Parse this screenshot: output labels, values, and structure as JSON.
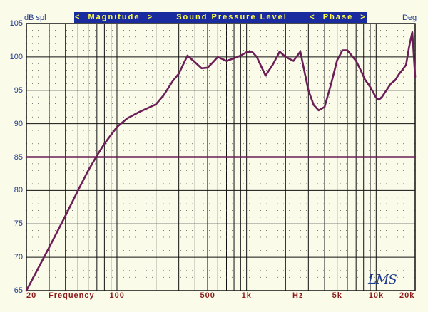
{
  "header": {
    "y_unit_left": "dB spl",
    "y_unit_right": "Deg",
    "banner_magnitude": "<  Magnitude  >",
    "banner_title": "Sound Pressure Level",
    "banner_phase": "<  Phase  >"
  },
  "logo_text": "LMS",
  "colors": {
    "curve": "#6b1f56",
    "reference": "#6b1f56",
    "grid": "#111111",
    "banner_bg": "#1a2ba0",
    "banner_text": "#ffff44",
    "y_tick_text": "#1f3a8a",
    "x_tick_text": "#8b1a1a",
    "background": "#fbfbea"
  },
  "chart_data": {
    "type": "line",
    "title": "Sound Pressure Level",
    "xlabel": "Frequency",
    "ylabel": "dB spl",
    "x_scale": "log",
    "xlim": [
      20,
      20000
    ],
    "ylim": [
      65,
      105
    ],
    "grid": true,
    "y_ticks": [
      65,
      70,
      75,
      80,
      85,
      90,
      95,
      100,
      105
    ],
    "y_tick_labels": [
      "65",
      "70",
      "75",
      "80",
      "85",
      "90",
      "95",
      "100",
      "105"
    ],
    "x_ticks": [
      {
        "x": 20,
        "label": "20"
      },
      {
        "x": 100,
        "label": "100"
      },
      {
        "x": 500,
        "label": "500"
      },
      {
        "x": 1000,
        "label": "1k"
      },
      {
        "x": 5000,
        "label": "5k"
      },
      {
        "x": 10000,
        "label": "10k"
      },
      {
        "x": 20000,
        "label": "20k"
      }
    ],
    "x_axis_words": [
      "Frequency",
      "Hz"
    ],
    "series": [
      {
        "role": "magnitude",
        "x": [
          20,
          30,
          40,
          50,
          60,
          70,
          80,
          100,
          120,
          150,
          200,
          230,
          270,
          300,
          350,
          400,
          450,
          500,
          550,
          600,
          700,
          800,
          900,
          1000,
          1100,
          1200,
          1400,
          1600,
          1800,
          2000,
          2300,
          2600,
          3000,
          3300,
          3600,
          4000,
          4500,
          5000,
          5500,
          6000,
          7000,
          7600,
          8200,
          9000,
          10000,
          10500,
          11000,
          12000,
          13000,
          14000,
          15000,
          16000,
          17000,
          18000,
          19000,
          20000
        ],
        "y": [
          65,
          71.5,
          76.2,
          80,
          83,
          85.2,
          87,
          89.5,
          90.8,
          91.8,
          92.9,
          94.3,
          96.4,
          97.5,
          100.2,
          99.2,
          98.3,
          98.4,
          99.2,
          100.0,
          99.4,
          99.8,
          100.2,
          100.7,
          100.8,
          100.0,
          97.2,
          98.9,
          100.8,
          100.0,
          99.4,
          100.8,
          95.0,
          92.8,
          92.0,
          92.5,
          96.0,
          99.5,
          101.0,
          101.0,
          99.4,
          98.0,
          96.6,
          95.5,
          93.9,
          93.6,
          93.9,
          95.0,
          96.0,
          96.5,
          97.4,
          98.1,
          98.8,
          101.6,
          103.7,
          97.0
        ]
      },
      {
        "role": "reference",
        "x": [
          20,
          20000
        ],
        "y": [
          85,
          85
        ]
      }
    ]
  }
}
